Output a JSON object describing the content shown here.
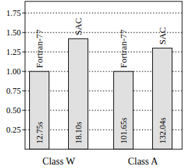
{
  "chart_data": {
    "type": "bar",
    "categories": [
      "Class W",
      "Class A"
    ],
    "series": [
      {
        "name": "Fortran-77",
        "color": "#e0e0e0",
        "values": [
          1.0,
          1.0
        ],
        "time_labels": [
          "12.75s",
          "101.65s"
        ]
      },
      {
        "name": "SAC",
        "color": "#e0e0e0",
        "values": [
          1.42,
          1.3
        ],
        "time_labels": [
          "18.10s",
          "132.04s"
        ]
      }
    ],
    "ylim": [
      0,
      1.9
    ],
    "yticks": [
      0.25,
      {
        "value": 0.5,
        "label": "0.50"
      },
      0.75,
      {
        "value": 1,
        "label": "1.00"
      },
      1.25,
      {
        "value": 1.5,
        "label": "1.50"
      },
      1.75
    ],
    "grid": true
  }
}
